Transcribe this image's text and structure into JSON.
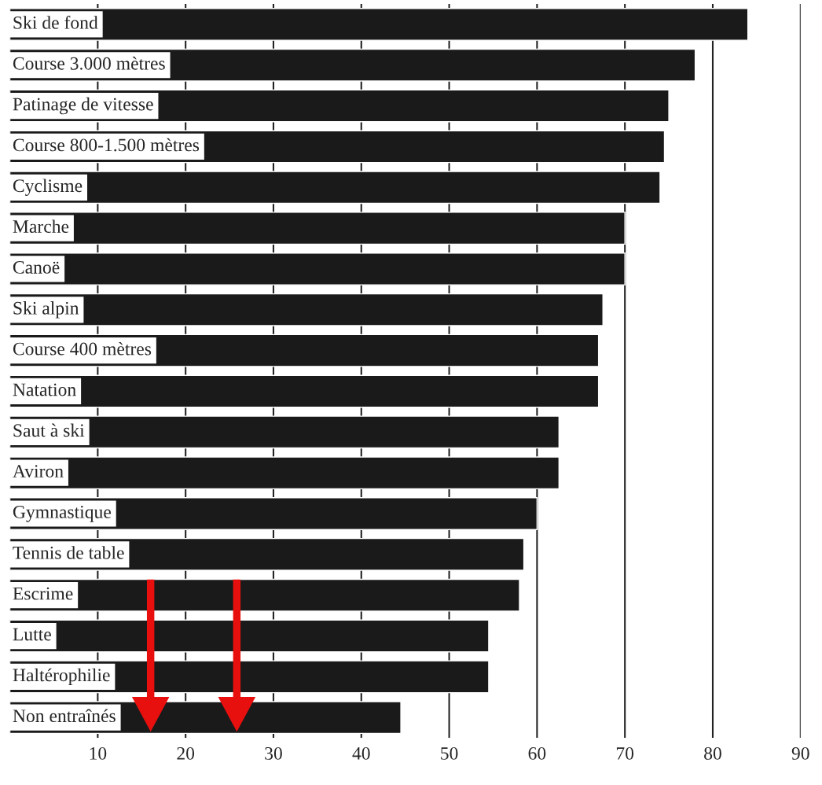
{
  "chart_data": {
    "type": "bar",
    "orientation": "horizontal",
    "categories": [
      "Ski de fond",
      "Course 3.000 mètres",
      "Patinage de vitesse",
      "Course 800-1.500 mètres",
      "Cyclisme",
      "Marche",
      "Canoë",
      "Ski alpin",
      "Course 400 mètres",
      "Natation",
      "Saut à ski",
      "Aviron",
      "Gymnastique",
      "Tennis de table",
      "Escrime",
      "Lutte",
      "Haltérophilie",
      "Non entraînés"
    ],
    "values": [
      84,
      78,
      75,
      74.5,
      74,
      70,
      70,
      67.5,
      67,
      67,
      62.5,
      62.5,
      60,
      58.5,
      58,
      54.5,
      54.5,
      44.5
    ],
    "color": "#1a1a1a",
    "xlim": [
      0,
      90
    ],
    "xticks": [
      10,
      20,
      30,
      40,
      50,
      60,
      70,
      80,
      90
    ],
    "grid": "x"
  }
}
